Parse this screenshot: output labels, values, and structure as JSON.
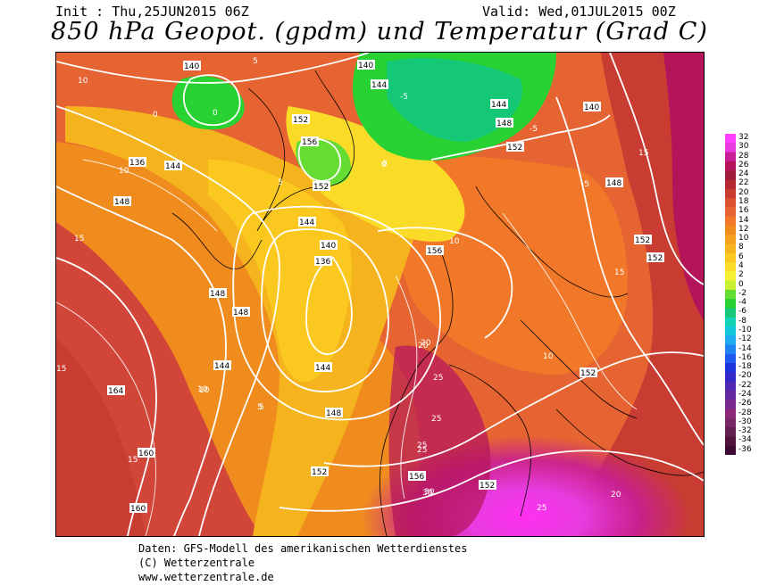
{
  "header": {
    "init": "Init : Thu,25JUN2015 06Z",
    "valid": "Valid: Wed,01JUL2015 00Z",
    "title": "850 hPa Geopot. (gpdm) und Temperatur (Grad C)"
  },
  "colorbar": {
    "ticks": [
      "32",
      "30",
      "28",
      "26",
      "24",
      "22",
      "20",
      "18",
      "16",
      "14",
      "12",
      "10",
      "8",
      "6",
      "4",
      "2",
      "0",
      "-2",
      "-4",
      "-6",
      "-8",
      "-10",
      "-12",
      "-14",
      "-16",
      "-18",
      "-20",
      "-22",
      "-24",
      "-26",
      "-28",
      "-30",
      "-32",
      "-34",
      "-36"
    ],
    "colors": {
      "32": "#ff40ff",
      "30": "#e83ce0",
      "28": "#c81e96",
      "26": "#b4145a",
      "24": "#a01e3c",
      "22": "#b42832",
      "20": "#c83c32",
      "18": "#dc5032",
      "16": "#e66432",
      "14": "#f07828",
      "12": "#f08c1e",
      "10": "#f5a01e",
      "8": "#f5b41e",
      "6": "#fac81e",
      "4": "#fadc28",
      "2": "#f5f032",
      "0": "#c8f032",
      "-2": "#64dc32",
      "-4": "#28d232",
      "-6": "#14c878",
      "-8": "#14d2b4",
      "-10": "#14c8dc",
      "-12": "#1eaaf0",
      "-14": "#1e82f0",
      "-16": "#1e5af0",
      "-18": "#1e32dc",
      "-20": "#3228c8",
      "-22": "#5028b4",
      "-24": "#6428a0",
      "-26": "#78288c",
      "-28": "#8c2878",
      "-30": "#782864",
      "-32": "#641e50",
      "-34": "#50143c",
      "-36": "#3c0a32"
    }
  },
  "map": {
    "geopotential_labels": [
      "140",
      "136",
      "144",
      "148",
      "152",
      "156",
      "160",
      "164",
      "148",
      "144",
      "152",
      "156",
      "140",
      "136",
      "144",
      "148",
      "152",
      "156",
      "152",
      "152",
      "152",
      "152",
      "152",
      "148",
      "148",
      "140",
      "144",
      "144",
      "148",
      "140",
      "144",
      "160"
    ],
    "temperature_labels": [
      "10",
      "15",
      "20",
      "25",
      "30",
      "5",
      "0",
      "-5",
      "10",
      "15",
      "20",
      "25",
      "5",
      "0",
      "-5",
      "10",
      "15",
      "25",
      "25",
      "20",
      "10",
      "15",
      "10",
      "5",
      "0",
      "-5",
      "30",
      "25",
      "15",
      "10",
      "5",
      "0"
    ]
  },
  "credits": {
    "line1": "Daten: GFS-Modell des amerikanischen Wetterdienstes",
    "line2": "(C) Wetterzentrale",
    "line3": "www.wetterzentrale.de"
  }
}
